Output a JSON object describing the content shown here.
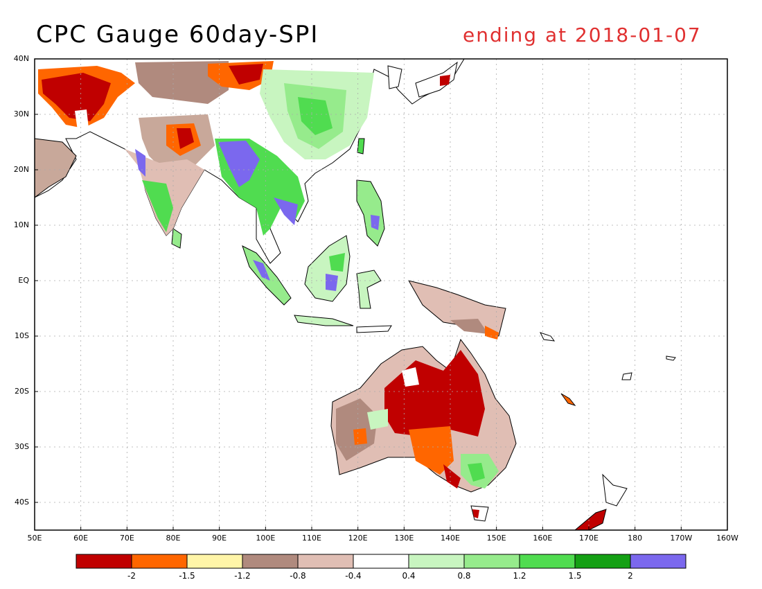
{
  "title": "CPC Gauge 60day-SPI",
  "subtitle": "ending at 2018-01-07",
  "lat_labels": [
    "40N",
    "30N",
    "20N",
    "10N",
    "EQ",
    "10S",
    "20S",
    "30S",
    "40S"
  ],
  "lon_labels": [
    "50E",
    "60E",
    "70E",
    "80E",
    "90E",
    "100E",
    "110E",
    "120E",
    "130E",
    "140E",
    "150E",
    "160E",
    "170E",
    "180",
    "170W",
    "160W"
  ],
  "colorbar": {
    "colors": [
      "#c00000",
      "#ff6600",
      "#fff5a8",
      "#b08a7e",
      "#e0beb4",
      "#ffffff",
      "#c8f5c0",
      "#96eb8c",
      "#50dc50",
      "#14a014",
      "#7b68ee"
    ],
    "labels": [
      "-2",
      "-1.5",
      "-1.2",
      "-0.8",
      "-0.4",
      "0.4",
      "0.8",
      "1.2",
      "1.5",
      "2"
    ]
  },
  "colors": {
    "subtitle": "#e03030",
    "grid": "#aaaaaa"
  }
}
